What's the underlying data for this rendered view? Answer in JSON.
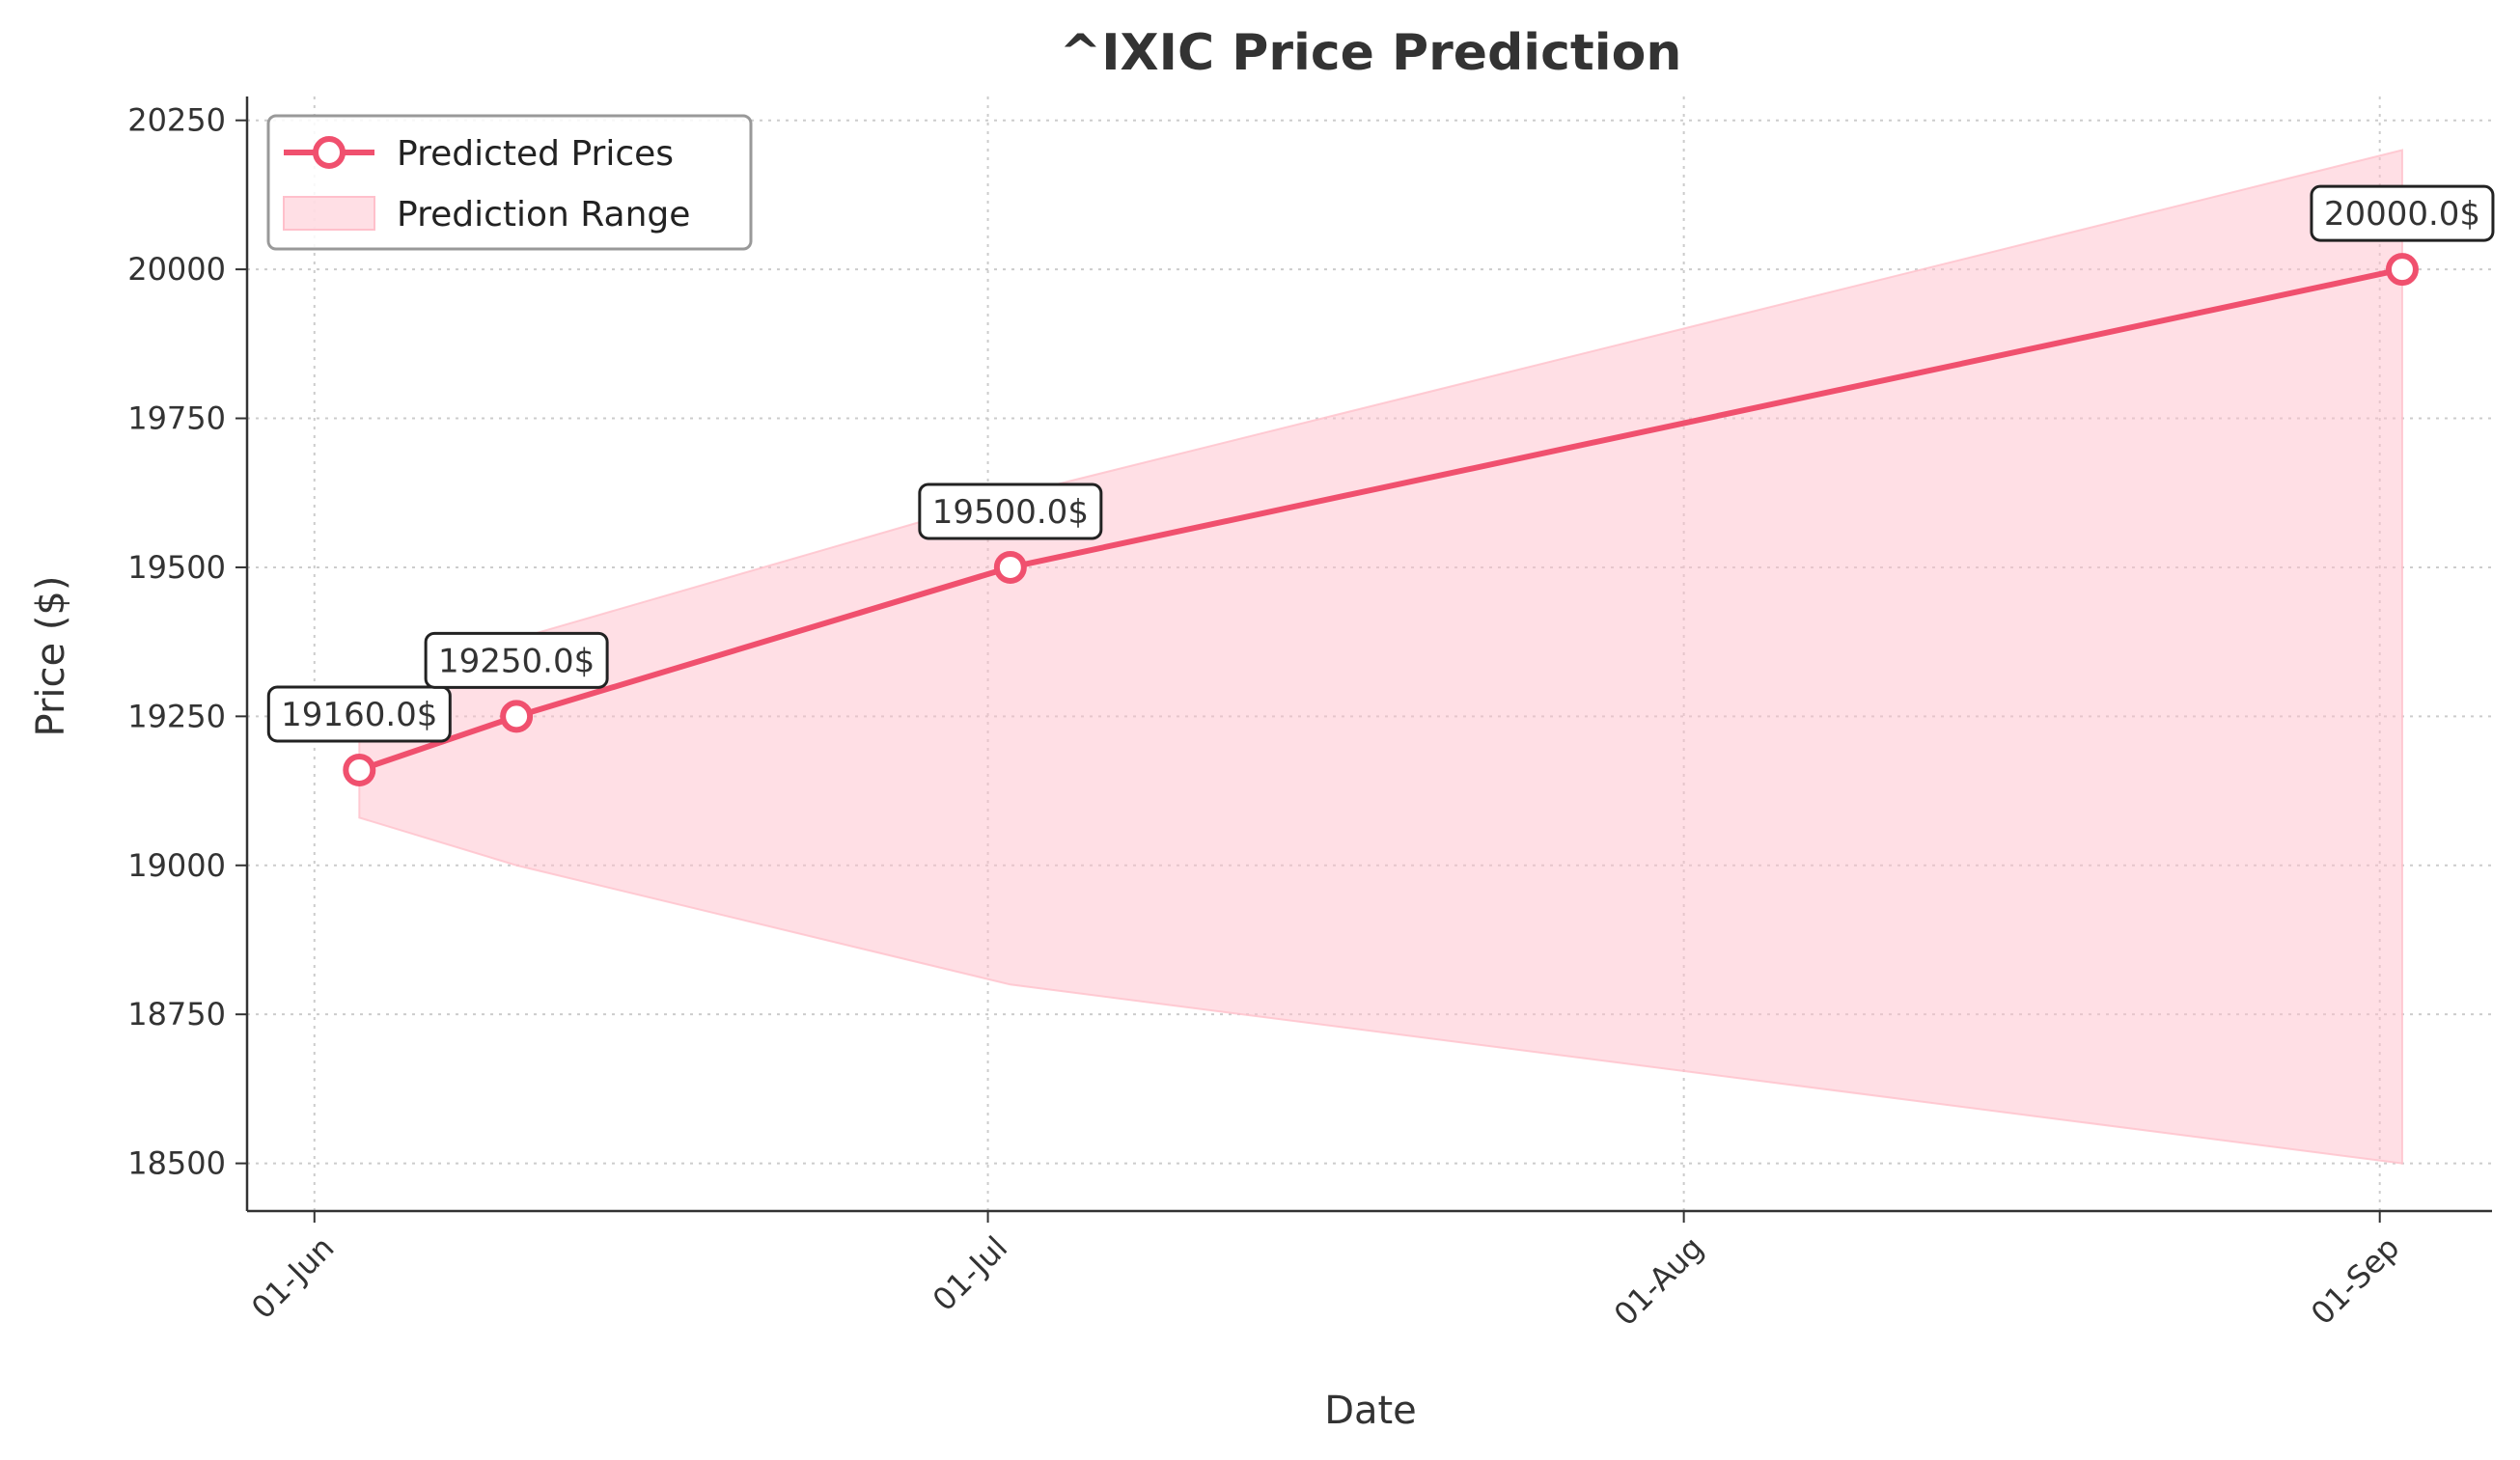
{
  "chart_data": {
    "type": "line",
    "title": "^IXIC Price Prediction",
    "xlabel": "Date",
    "ylabel": "Price ($)",
    "x_ticks": [
      "01-Jun",
      "01-Jul",
      "01-Aug",
      "01-Sep"
    ],
    "x_tick_dates": [
      "2024-06-01",
      "2024-07-01",
      "2024-08-01",
      "2024-09-01"
    ],
    "xlim": [
      "2024-05-29",
      "2024-09-06"
    ],
    "y_ticks": [
      18500,
      18750,
      19000,
      19250,
      19500,
      19750,
      20000,
      20250
    ],
    "ylim": [
      18420,
      20290
    ],
    "grid": true,
    "legend_position": "top-left",
    "series": [
      {
        "name": "Predicted Prices",
        "type": "line",
        "color": "#f0506e",
        "x": [
          "2024-06-03",
          "2024-06-10",
          "2024-07-02",
          "2024-09-02"
        ],
        "y": [
          19160.0,
          19250.0,
          19500.0,
          20000.0
        ],
        "labels": [
          "19160.0$",
          "19250.0$",
          "19500.0$",
          "20000.0$"
        ]
      },
      {
        "name": "Prediction Range",
        "type": "area",
        "color": "#ffc0cb",
        "x": [
          "2024-06-03",
          "2024-06-10",
          "2024-07-02",
          "2024-09-02"
        ],
        "upper": [
          19240,
          19380,
          19620,
          20200
        ],
        "lower": [
          19080,
          19000,
          18800,
          18500
        ]
      }
    ]
  }
}
